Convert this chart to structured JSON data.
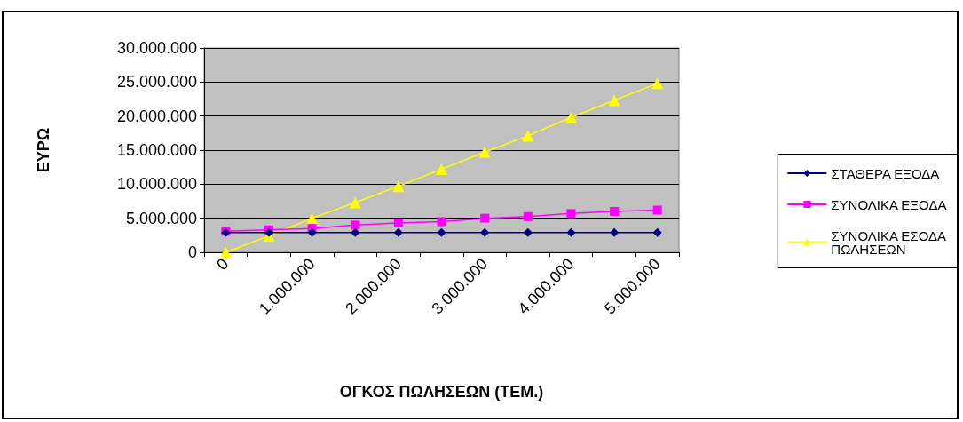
{
  "chart_data": {
    "type": "line",
    "xlabel": "ΟΓΚΟΣ ΠΩΛΗΣΕΩΝ (ΤΕΜ.)",
    "ylabel": "ΕΥΡΩ",
    "categories": [
      "0",
      null,
      "1.000.000",
      null,
      "2.000.000",
      null,
      "3.000.000",
      null,
      "4.000.000",
      null,
      "5.000.000"
    ],
    "series": [
      {
        "name": "ΣΤΑΘΕΡΑ ΕΞΟΔΑ",
        "color": "#000080",
        "marker": "diamond",
        "values": [
          2900000,
          2900000,
          2900000,
          2900000,
          2900000,
          2900000,
          2900000,
          2900000,
          2900000,
          2900000,
          2900000
        ]
      },
      {
        "name": "ΣΥΝΟΛΙΚΑ ΕΞΟΔΑ",
        "color": "#ff00ff",
        "marker": "square",
        "values": [
          3100000,
          3300000,
          3500000,
          4000000,
          4300000,
          4500000,
          5000000,
          5250000,
          5700000,
          6000000,
          6200000
        ]
      },
      {
        "name": "ΣΥΝΟΛΙΚΑ ΕΣΟΔΑ ΠΩΛΗΣΕΩΝ",
        "color": "#ffff00",
        "marker": "triangle",
        "values": [
          0,
          2400000,
          5000000,
          7300000,
          9700000,
          12200000,
          14700000,
          17100000,
          19800000,
          22300000,
          24800000
        ]
      }
    ],
    "ylim": [
      0,
      30000000
    ],
    "yticks": [
      {
        "value": 0,
        "label": "0"
      },
      {
        "value": 5000000,
        "label": "5.000.000"
      },
      {
        "value": 10000000,
        "label": "10.000.000"
      },
      {
        "value": 15000000,
        "label": "15.000.000"
      },
      {
        "value": 20000000,
        "label": "20.000.000"
      },
      {
        "value": 25000000,
        "label": "25.000.000"
      },
      {
        "value": 30000000,
        "label": "30.000.000"
      }
    ],
    "grid": "y",
    "legend": "right",
    "line_style": "solid"
  }
}
